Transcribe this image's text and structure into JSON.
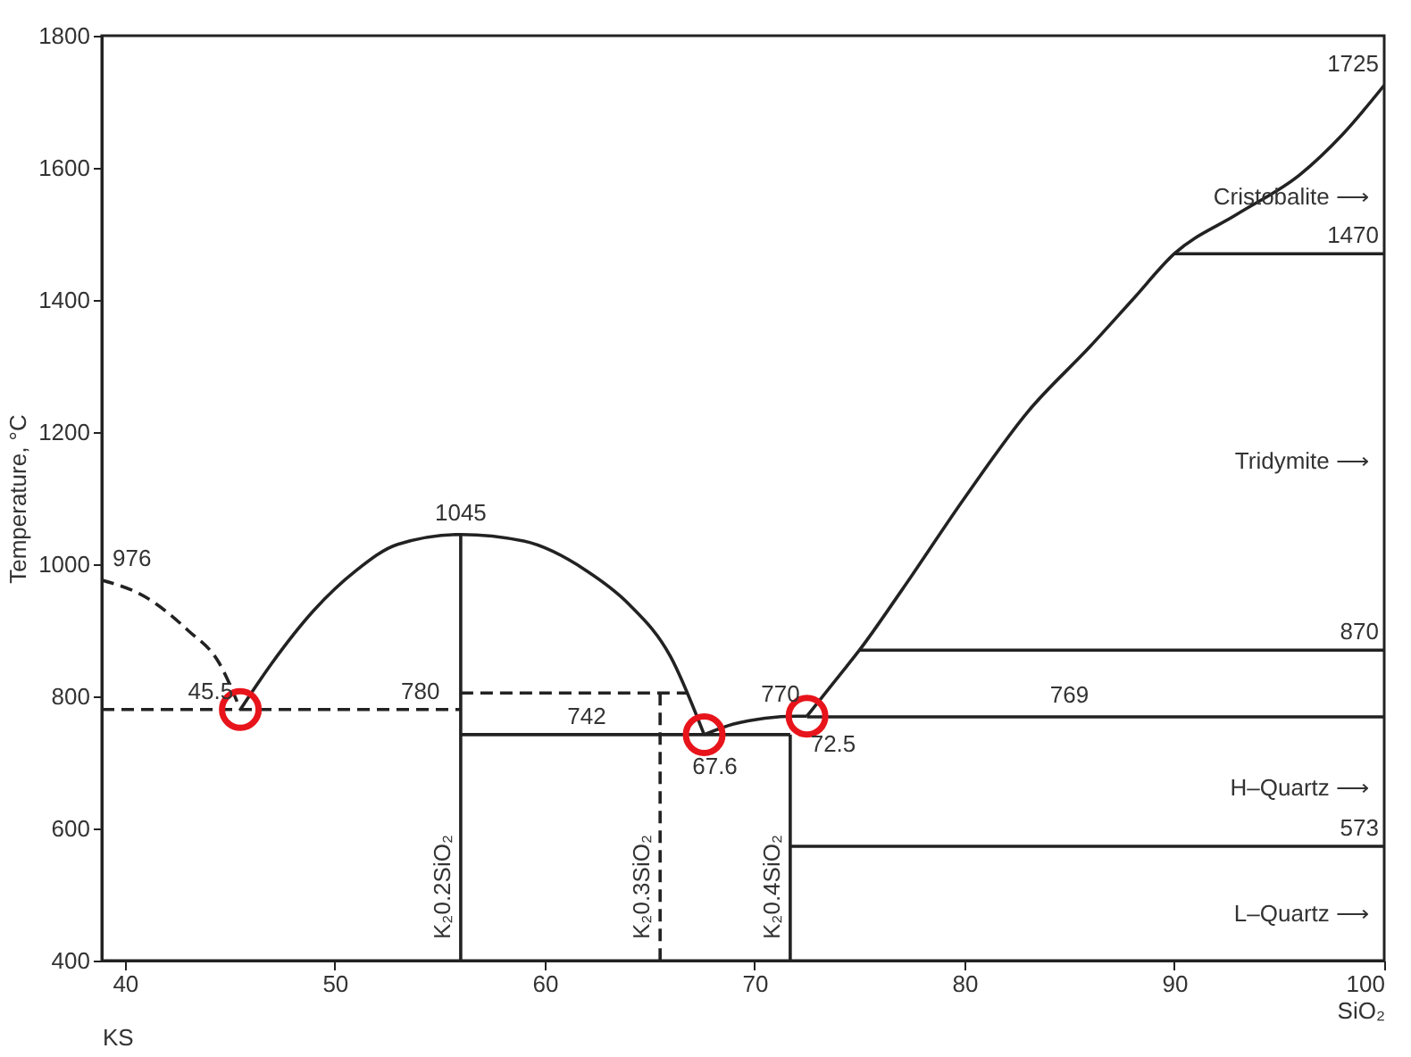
{
  "chart_data": {
    "type": "line",
    "ylabel": "Temperature, °C",
    "xlabel": "KS",
    "xlim": [
      38.9,
      100
    ],
    "ylim": [
      400,
      1800
    ],
    "xticks": [
      40,
      50,
      60,
      70,
      80,
      90,
      {
        "value": 100,
        "label": "100\nSiO₂"
      }
    ],
    "yticks": [
      400,
      600,
      800,
      1000,
      1200,
      1400,
      1600,
      1800
    ],
    "grid": false,
    "series": [
      {
        "color": "#222222",
        "line_style": "dashed",
        "x": [
          38.9,
          41,
          43,
          44.5,
          45.5
        ],
        "values": [
          976,
          950,
          900,
          850,
          780
        ]
      },
      {
        "color": "#222222",
        "line_style": "solid",
        "x": [
          45.5,
          47,
          49,
          51,
          53,
          56,
          59,
          62,
          64,
          66,
          67.6
        ],
        "values": [
          780,
          850,
          930,
          990,
          1030,
          1045,
          1035,
          990,
          940,
          860,
          742
        ]
      },
      {
        "color": "#222222",
        "line_style": "solid",
        "x": [
          67.6,
          69,
          70.5,
          72,
          72.5
        ],
        "values": [
          742,
          758,
          767,
          770,
          770
        ]
      },
      {
        "color": "#222222",
        "line_style": "solid",
        "x": [
          72.5,
          74,
          75,
          77,
          80,
          83,
          86,
          88,
          90,
          93,
          96,
          98,
          100
        ],
        "values": [
          770,
          830,
          870,
          960,
          1100,
          1230,
          1330,
          1400,
          1470,
          1530,
          1590,
          1650,
          1725
        ]
      },
      {
        "color": "#222222",
        "line_style": "dashed",
        "x": [
          38.9,
          56
        ],
        "values": [
          780,
          780
        ]
      },
      {
        "color": "#222222",
        "line_style": "dashed",
        "x": [
          56,
          66.8
        ],
        "values": [
          805,
          805
        ]
      },
      {
        "color": "#222222",
        "line_style": "dashed",
        "name": "K₂0.3SiO₂",
        "x": [
          65.5,
          65.5
        ],
        "values": [
          805,
          400
        ]
      },
      {
        "color": "#222222",
        "line_style": "solid",
        "name": "K₂0.2SiO₂",
        "x": [
          56,
          56
        ],
        "values": [
          1045,
          400
        ]
      },
      {
        "color": "#222222",
        "line_style": "solid",
        "x": [
          56,
          71.7
        ],
        "values": [
          742,
          742
        ]
      },
      {
        "color": "#222222",
        "line_style": "solid",
        "name": "K₂0.4SiO₂",
        "x": [
          71.7,
          71.7
        ],
        "values": [
          742,
          400
        ]
      },
      {
        "color": "#222222",
        "line_style": "solid",
        "x": [
          72.5,
          100
        ],
        "values": [
          769,
          769
        ]
      },
      {
        "color": "#222222",
        "line_style": "solid",
        "x": [
          75,
          100
        ],
        "values": [
          870,
          870
        ]
      },
      {
        "color": "#222222",
        "line_style": "solid",
        "x": [
          90,
          100
        ],
        "values": [
          1470,
          1470
        ]
      },
      {
        "color": "#222222",
        "line_style": "solid",
        "x": [
          71.7,
          100
        ],
        "values": [
          573,
          573
        ]
      },
      {
        "type": "scatter",
        "color": "#e8141b",
        "marker": "circle",
        "x": [
          45.5,
          67.6,
          72.5
        ],
        "values": [
          780,
          742,
          770
        ]
      }
    ],
    "annotations": [
      "Cristobalite ⟶",
      "Tridymite ⟶",
      "H–Quartz ⟶",
      "L–Quartz ⟶",
      {
        "text": "976",
        "x": 38.9,
        "y": 976
      },
      {
        "text": "1045",
        "x": 56,
        "y": 1045
      },
      {
        "text": "45.5",
        "x": 45.5,
        "y": 780
      },
      {
        "text": "780",
        "x": 55,
        "y": 780
      },
      {
        "text": "742",
        "x": 62,
        "y": 742
      },
      {
        "text": "67.6",
        "x": 67.6,
        "y": 742
      },
      {
        "text": "770",
        "x": 72.5,
        "y": 770
      },
      {
        "text": "72.5",
        "x": 72.5,
        "y": 770
      },
      {
        "text": "769",
        "x": 85,
        "y": 769
      },
      {
        "text": "870",
        "x": 100,
        "y": 870
      },
      {
        "text": "1470",
        "x": 100,
        "y": 1470
      },
      {
        "text": "573",
        "x": 100,
        "y": 573
      },
      {
        "text": "1725",
        "x": 100,
        "y": 1725
      }
    ]
  }
}
